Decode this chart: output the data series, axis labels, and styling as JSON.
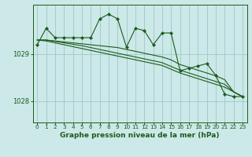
{
  "title": "Graphe pression niveau de la mer (hPa)",
  "bg_color": "#cce8e8",
  "grid_color": "#9dc8c8",
  "line_color": "#1a5c1a",
  "xlim": [
    -0.5,
    23.5
  ],
  "ylim": [
    1027.55,
    1030.05
  ],
  "yticks": [
    1028,
    1029
  ],
  "xticks": [
    0,
    1,
    2,
    3,
    4,
    5,
    6,
    7,
    8,
    9,
    10,
    11,
    12,
    13,
    14,
    15,
    16,
    17,
    18,
    19,
    20,
    21,
    22,
    23
  ],
  "series": {
    "main": [
      1029.2,
      1029.55,
      1029.35,
      1029.35,
      1029.35,
      1029.35,
      1029.35,
      1029.75,
      1029.85,
      1029.75,
      1029.15,
      1029.55,
      1029.5,
      1029.2,
      1029.45,
      1029.45,
      1028.65,
      1028.7,
      1028.75,
      1028.8,
      1028.55,
      1028.15,
      1028.1,
      1028.1
    ],
    "trend1": [
      1029.3,
      1029.3,
      1029.28,
      1029.26,
      1029.24,
      1029.22,
      1029.2,
      1029.18,
      1029.16,
      1029.14,
      1029.1,
      1029.06,
      1029.02,
      1028.98,
      1028.94,
      1028.88,
      1028.78,
      1028.72,
      1028.66,
      1028.6,
      1028.54,
      1028.46,
      1028.2,
      1028.1
    ],
    "trend2": [
      1029.3,
      1029.3,
      1029.27,
      1029.24,
      1029.21,
      1029.18,
      1029.14,
      1029.1,
      1029.06,
      1029.02,
      1028.98,
      1028.94,
      1028.9,
      1028.86,
      1028.82,
      1028.74,
      1028.66,
      1028.6,
      1028.54,
      1028.48,
      1028.42,
      1028.36,
      1028.2,
      1028.1
    ],
    "trend3": [
      1029.3,
      1029.28,
      1029.24,
      1029.2,
      1029.16,
      1029.12,
      1029.08,
      1029.04,
      1029.0,
      1028.96,
      1028.92,
      1028.88,
      1028.84,
      1028.8,
      1028.76,
      1028.68,
      1028.6,
      1028.54,
      1028.48,
      1028.42,
      1028.36,
      1028.3,
      1028.2,
      1028.1
    ]
  }
}
